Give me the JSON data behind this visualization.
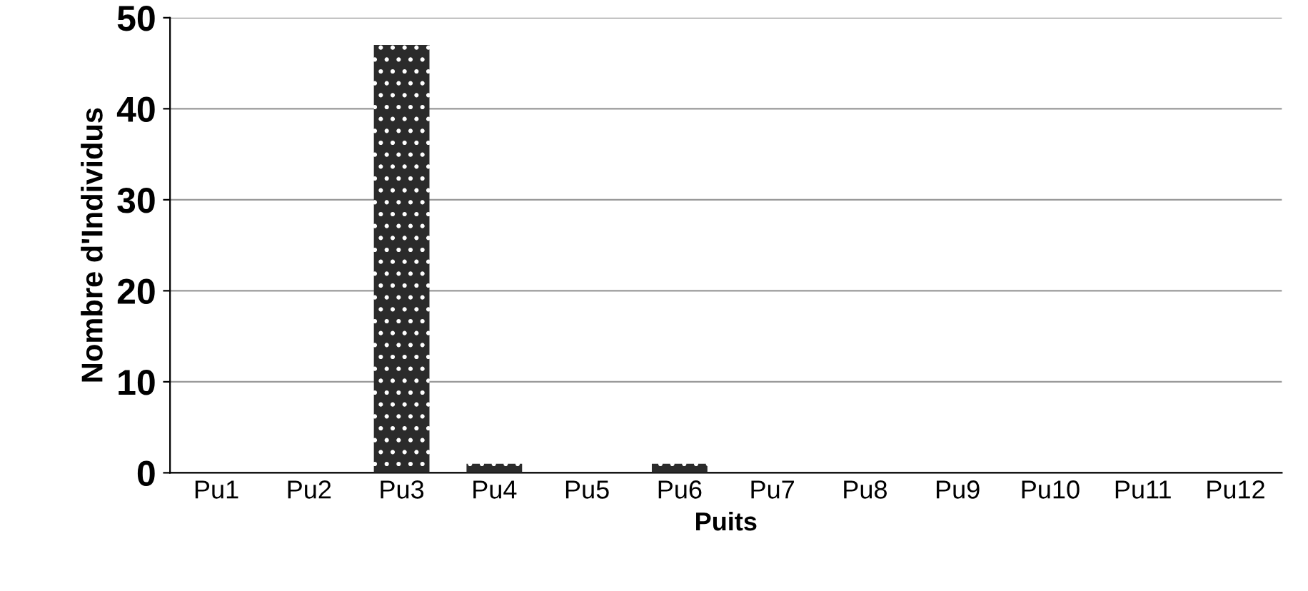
{
  "chart_data": {
    "type": "bar",
    "xlabel": "Puits",
    "ylabel": "Nombre d'Individus",
    "categories": [
      "Pu1",
      "Pu2",
      "Pu3",
      "Pu4",
      "Pu5",
      "Pu6",
      "Pu7",
      "Pu8",
      "Pu9",
      "Pu10",
      "Pu11",
      "Pu12"
    ],
    "values": [
      0,
      0,
      47,
      1,
      0,
      1,
      0,
      0,
      0,
      0,
      0,
      0
    ],
    "color": "#2b2b2b",
    "ylim": [
      0,
      50
    ],
    "yticks": [
      0,
      10,
      20,
      30,
      40,
      50
    ],
    "grid": "y",
    "legend": false
  }
}
